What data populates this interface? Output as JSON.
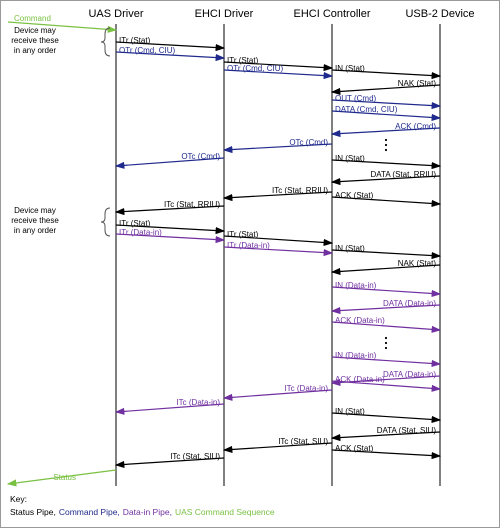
{
  "lifelines": [
    "UAS Driver",
    "EHCI Driver",
    "EHCI Controller",
    "USB-2 Device"
  ],
  "notes": [
    {
      "lines": [
        "Device may",
        "receive these",
        "in any order"
      ]
    },
    {
      "lines": [
        "Device may",
        "receive these",
        "in any order"
      ]
    }
  ],
  "messages": [
    "Command",
    "ITr (Stat)",
    "OTr (Cmd, CIU)",
    "ITr (Stat)",
    "OTr (Cmd, CIU)",
    "IN (Stat)",
    "NAK (Stat)",
    "OUT (Cmd)",
    "DATA (Cmd, CIU)",
    "ACK (Cmd)",
    "OTc (Cmd)",
    "IN (Stat)",
    "OTc (Cmd)",
    "DATA (Stat, RRIU)",
    "ITc (Stat, RRIU)",
    "ACK (Stat)",
    "ITc (Stat, RRIU)",
    "ITr (Stat)",
    "ITr (Data-in)",
    "ITr (Stat)",
    "ITr (Data-in)",
    "IN (Stat)",
    "NAK (Stat)",
    "IN (Data-in)",
    "DATA (Data-in)",
    "ACK (Data-in)",
    "IN (Data-in)",
    "DATA (Data-in)",
    "ACK (Data-in)",
    "ITc (Data-in)",
    "ITc (Data-in)",
    "IN (Stat)",
    "DATA (Stat, SIU)",
    "ITc (Stat, SIU)",
    "ACK (Stat)",
    "ITc (Stat, SIU)",
    "Status"
  ],
  "key": {
    "title": "Key:",
    "items": [
      "Status Pipe,",
      "Command Pipe,",
      "Data-in Pipe,",
      "UAS Command Sequence"
    ]
  }
}
